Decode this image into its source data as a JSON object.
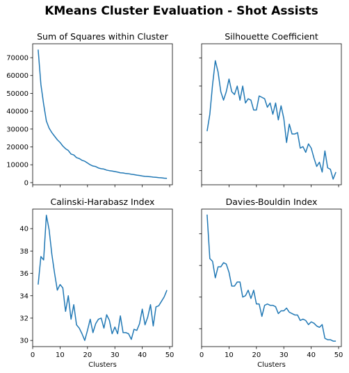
{
  "figure": {
    "title": "KMeans Cluster Evaluation - Shot Assists",
    "line_color": "#1f77b4"
  },
  "chart_data": [
    {
      "type": "line",
      "title": "Sum of Squares within Cluster",
      "xlabel": "",
      "ylabel": "",
      "xlim": [
        0,
        51
      ],
      "ylim": [
        -1200,
        77800
      ],
      "xticks": [
        0,
        10,
        20,
        30,
        40,
        50
      ],
      "yticks": [
        0,
        10000,
        20000,
        30000,
        40000,
        50000,
        60000,
        70000
      ],
      "ytick_labels": [
        "0",
        "10000",
        "20000",
        "30000",
        "40000",
        "50000",
        "60000",
        "70000"
      ],
      "show_xtick_labels": false,
      "show_ytick_labels": true,
      "grid": false,
      "x": [
        2,
        3,
        4,
        5,
        6,
        7,
        8,
        9,
        10,
        11,
        12,
        13,
        14,
        15,
        16,
        17,
        18,
        19,
        20,
        21,
        22,
        23,
        24,
        25,
        26,
        27,
        28,
        29,
        30,
        31,
        32,
        33,
        34,
        35,
        36,
        37,
        38,
        39,
        40,
        41,
        42,
        43,
        44,
        45,
        46,
        47,
        48,
        49
      ],
      "y": [
        74500,
        55000,
        44000,
        34500,
        30500,
        28000,
        26000,
        24000,
        22500,
        20500,
        19000,
        18000,
        16000,
        15500,
        14000,
        13500,
        12500,
        12000,
        11000,
        10000,
        9300,
        9000,
        8200,
        7800,
        7600,
        7000,
        6700,
        6500,
        6200,
        5900,
        5500,
        5400,
        5100,
        5000,
        4700,
        4500,
        4200,
        4000,
        3700,
        3500,
        3400,
        3300,
        3100,
        3000,
        2800,
        2700,
        2500,
        2400
      ]
    },
    {
      "type": "line",
      "title": "Silhouette Coefficient",
      "xlabel": "",
      "ylabel": "",
      "xlim": [
        0,
        51
      ],
      "ylim": [
        0,
        1
      ],
      "xticks": [
        0,
        10,
        20,
        30,
        40,
        50
      ],
      "yticks": [
        0.1,
        0.3,
        0.5,
        0.7,
        0.9
      ],
      "show_xtick_labels": false,
      "show_ytick_labels": false,
      "grid": false,
      "x": [
        2,
        3,
        4,
        5,
        6,
        7,
        8,
        9,
        10,
        11,
        12,
        13,
        14,
        15,
        16,
        17,
        18,
        19,
        20,
        21,
        22,
        23,
        24,
        25,
        26,
        27,
        28,
        29,
        30,
        31,
        32,
        33,
        34,
        35,
        36,
        37,
        38,
        39,
        40,
        41,
        42,
        43,
        44,
        45,
        46,
        47,
        48,
        49
      ],
      "y": [
        0.38,
        0.5,
        0.71,
        0.88,
        0.8,
        0.66,
        0.6,
        0.66,
        0.75,
        0.66,
        0.64,
        0.7,
        0.6,
        0.7,
        0.58,
        0.61,
        0.6,
        0.53,
        0.53,
        0.63,
        0.62,
        0.61,
        0.55,
        0.58,
        0.5,
        0.58,
        0.46,
        0.56,
        0.47,
        0.3,
        0.43,
        0.36,
        0.36,
        0.37,
        0.26,
        0.27,
        0.23,
        0.29,
        0.26,
        0.19,
        0.13,
        0.16,
        0.09,
        0.24,
        0.12,
        0.11,
        0.04,
        0.09
      ]
    },
    {
      "type": "line",
      "title": "Calinski-Harabasz Index",
      "xlabel": "Clusters",
      "ylabel": "",
      "xlim": [
        0,
        51
      ],
      "ylim": [
        29.45,
        41.75
      ],
      "xticks": [
        0,
        10,
        20,
        30,
        40,
        50
      ],
      "yticks": [
        30,
        32,
        34,
        36,
        38,
        40
      ],
      "ytick_labels": [
        "30",
        "32",
        "34",
        "36",
        "38",
        "40"
      ],
      "show_xtick_labels": true,
      "show_ytick_labels": true,
      "grid": false,
      "x": [
        2,
        3,
        4,
        5,
        6,
        7,
        8,
        9,
        10,
        11,
        12,
        13,
        14,
        15,
        16,
        17,
        18,
        19,
        20,
        21,
        22,
        23,
        24,
        25,
        26,
        27,
        28,
        29,
        30,
        31,
        32,
        33,
        34,
        35,
        36,
        37,
        38,
        39,
        40,
        41,
        42,
        43,
        44,
        45,
        46,
        47,
        48,
        49
      ],
      "y": [
        35.0,
        37.5,
        37.2,
        41.2,
        39.9,
        37.7,
        36.0,
        34.5,
        35.0,
        34.7,
        32.6,
        34.0,
        31.9,
        33.2,
        31.4,
        31.1,
        30.6,
        30.0,
        30.9,
        31.9,
        30.7,
        31.5,
        31.9,
        32.0,
        31.1,
        32.3,
        31.8,
        30.6,
        31.2,
        30.6,
        32.2,
        30.7,
        30.7,
        30.6,
        30.1,
        31.0,
        30.9,
        31.5,
        32.8,
        31.4,
        32.1,
        33.2,
        31.3,
        33.0,
        33.1,
        33.5,
        33.9,
        34.5
      ]
    },
    {
      "type": "line",
      "title": "Davies-Bouldin Index",
      "xlabel": "Clusters",
      "ylabel": "",
      "xlim": [
        0,
        51
      ],
      "ylim": [
        0,
        1
      ],
      "xticks": [
        0,
        10,
        20,
        30,
        40,
        50
      ],
      "yticks": [
        0.13,
        0.36,
        0.59,
        0.82
      ],
      "show_xtick_labels": true,
      "show_ytick_labels": false,
      "grid": false,
      "x": [
        2,
        3,
        4,
        5,
        6,
        7,
        8,
        9,
        10,
        11,
        12,
        13,
        14,
        15,
        16,
        17,
        18,
        19,
        20,
        21,
        22,
        23,
        24,
        25,
        26,
        27,
        28,
        29,
        30,
        31,
        32,
        33,
        34,
        35,
        36,
        37,
        38,
        39,
        40,
        41,
        42,
        43,
        44,
        45,
        46,
        47,
        48,
        49
      ],
      "y": [
        0.96,
        0.64,
        0.62,
        0.5,
        0.58,
        0.58,
        0.61,
        0.6,
        0.54,
        0.44,
        0.44,
        0.47,
        0.47,
        0.36,
        0.37,
        0.41,
        0.35,
        0.41,
        0.31,
        0.31,
        0.22,
        0.3,
        0.31,
        0.3,
        0.3,
        0.29,
        0.24,
        0.26,
        0.26,
        0.28,
        0.25,
        0.24,
        0.23,
        0.23,
        0.19,
        0.2,
        0.19,
        0.16,
        0.18,
        0.17,
        0.15,
        0.14,
        0.16,
        0.06,
        0.05,
        0.05,
        0.04,
        0.04
      ]
    }
  ]
}
